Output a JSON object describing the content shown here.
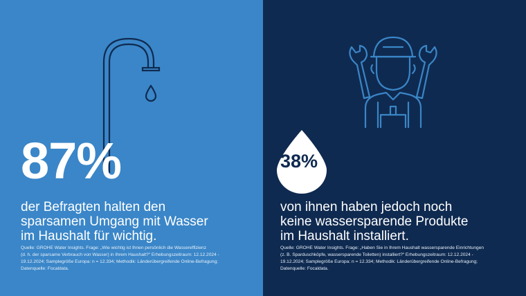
{
  "colors": {
    "left_bg": "#3a86c8",
    "right_bg": "#0f2a50",
    "icon_left": "#0f2a50",
    "icon_right": "#3a86c8",
    "text": "#ffffff"
  },
  "left": {
    "icon": "faucet-icon",
    "stat": "87%",
    "headline_lines": [
      "der Befragten halten den",
      "sparsamen Umgang mit Wasser",
      "im Haushalt für wichtig."
    ],
    "source_lines": [
      "Quelle: GROHE Water Insights. Frage: „Wie wichtig ist Ihnen persönlich die Wassereffizienz",
      "(d. h. der sparsame Verbrauch von Wasser) in Ihrem Haushalt?“ Erhebungszeitraum: 12.12.2024 -",
      "19.12.2024; Samplegröße Europa: n = 12.334; Methodik: Länderübergreifende Online-Befragung;",
      "Datenquelle: Focaldata."
    ]
  },
  "right": {
    "icon": "plumber-with-wrenches-icon",
    "drop_icon": "water-drop-icon",
    "stat": "38%",
    "headline_lines": [
      "von ihnen haben jedoch noch",
      "keine wassersparende Produkte",
      "im Haushalt installiert."
    ],
    "source_lines": [
      "Quelle: GROHE Water Insights. Frage: „Haben Sie in Ihrem Haushalt wassersparende Einrichtungen",
      "(z. B. Sparduschköpfe, wassersparende Toiletten) installiert?“ Erhebungszeitraum: 12.12.2024 -",
      "19.12.2024; Samplegröße Europa: n = 12.334; Methodik: Länderübergreifende Online-Befragung;",
      "Datenquelle: Focaldata."
    ]
  }
}
